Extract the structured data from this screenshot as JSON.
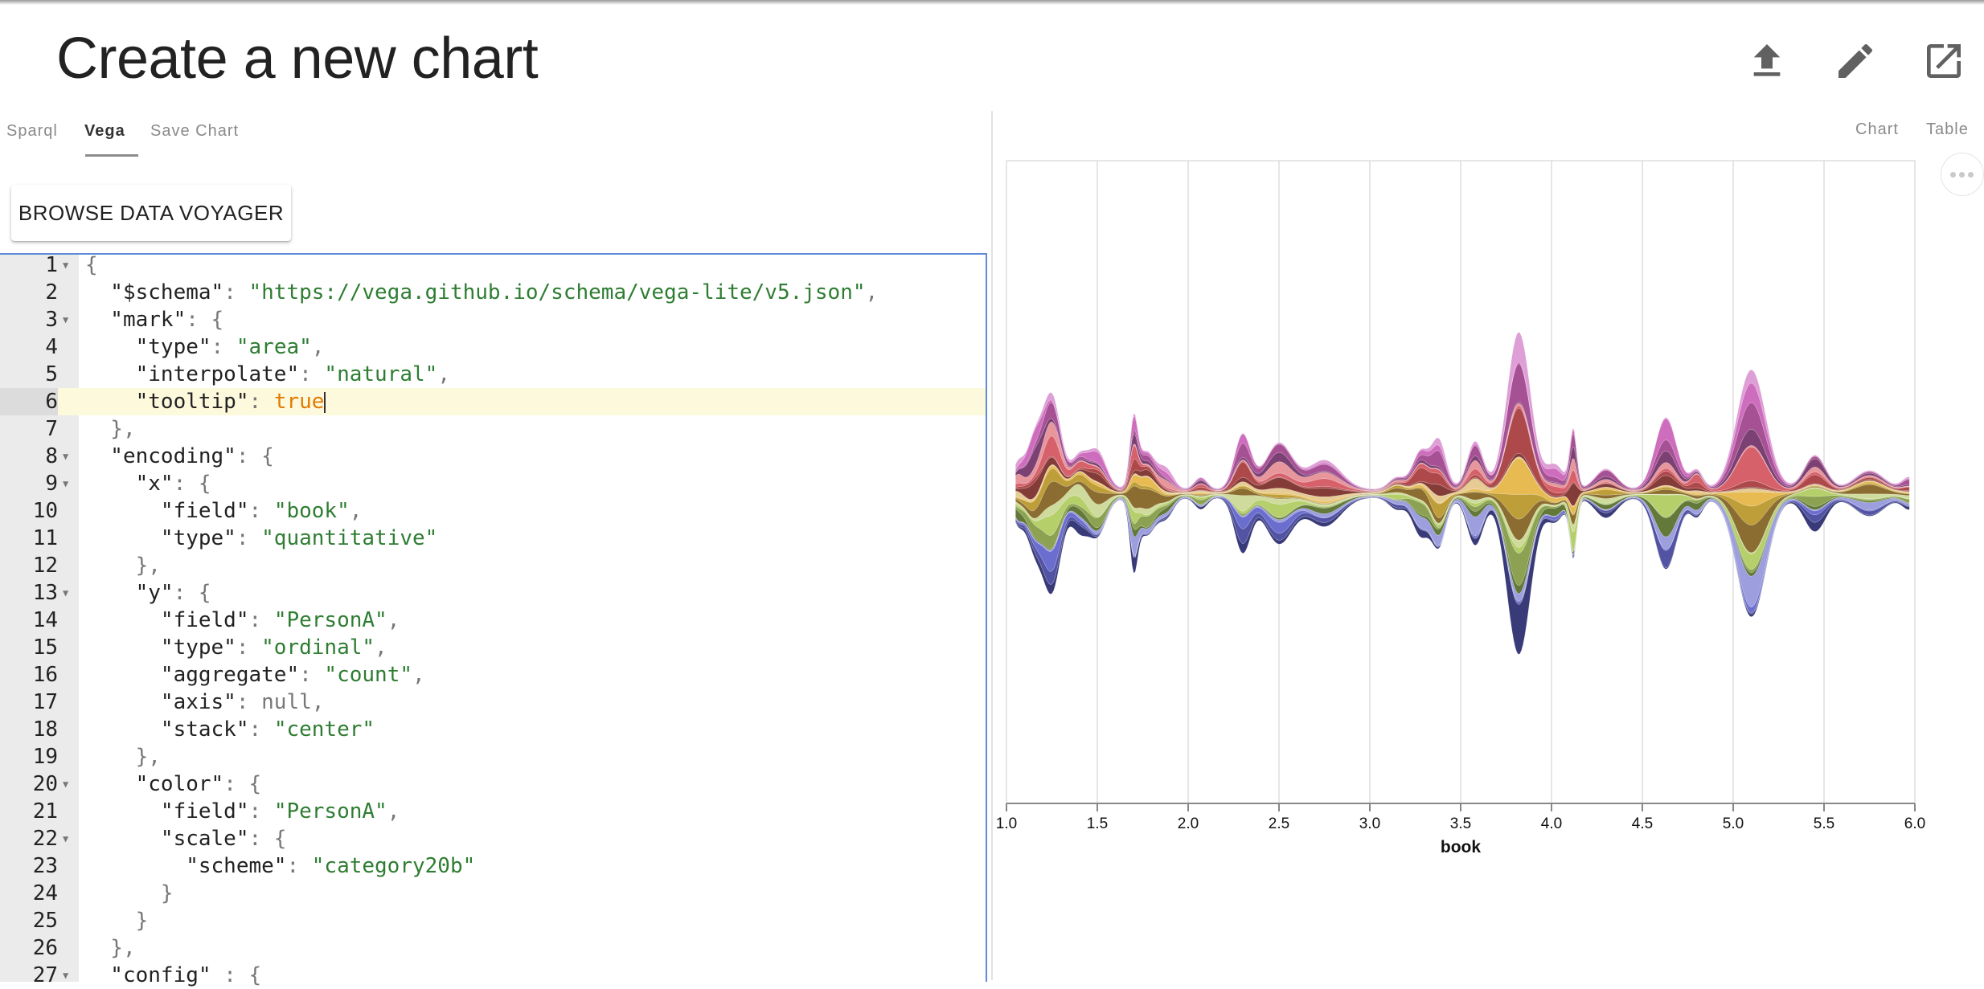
{
  "header": {
    "title": "Create a new chart"
  },
  "tabs": [
    {
      "label": "Sparql",
      "active": false
    },
    {
      "label": "Vega",
      "active": true
    },
    {
      "label": "Save Chart",
      "active": false
    }
  ],
  "toolbar": {
    "browse_label": "BROWSE DATA VOYAGER",
    "icons": [
      "upload-icon",
      "edit-icon",
      "open-in-new-icon"
    ]
  },
  "right_tabs": [
    {
      "label": "Chart"
    },
    {
      "label": "Table"
    }
  ],
  "editor": {
    "active_line": 6,
    "lines": [
      {
        "n": "1",
        "fold": true,
        "tokens": [
          [
            "p",
            "{"
          ]
        ]
      },
      {
        "n": "2",
        "fold": false,
        "tokens": [
          [
            "k",
            "  \"$schema\""
          ],
          [
            "p",
            ": "
          ],
          [
            "s",
            "\"https://vega.github.io/schema/vega-lite/v5.json\""
          ],
          [
            "p",
            ","
          ]
        ]
      },
      {
        "n": "3",
        "fold": true,
        "tokens": [
          [
            "k",
            "  \"mark\""
          ],
          [
            "p",
            ": {"
          ]
        ]
      },
      {
        "n": "4",
        "fold": false,
        "tokens": [
          [
            "k",
            "    \"type\""
          ],
          [
            "p",
            ": "
          ],
          [
            "s",
            "\"area\""
          ],
          [
            "p",
            ","
          ]
        ]
      },
      {
        "n": "5",
        "fold": false,
        "tokens": [
          [
            "k",
            "    \"interpolate\""
          ],
          [
            "p",
            ": "
          ],
          [
            "s",
            "\"natural\""
          ],
          [
            "p",
            ","
          ]
        ]
      },
      {
        "n": "6",
        "fold": false,
        "tokens": [
          [
            "k",
            "    \"tooltip\""
          ],
          [
            "p",
            ": "
          ],
          [
            "b",
            "true"
          ]
        ]
      },
      {
        "n": "7",
        "fold": false,
        "tokens": [
          [
            "p",
            "  },"
          ]
        ]
      },
      {
        "n": "8",
        "fold": true,
        "tokens": [
          [
            "k",
            "  \"encoding\""
          ],
          [
            "p",
            ": {"
          ]
        ]
      },
      {
        "n": "9",
        "fold": true,
        "tokens": [
          [
            "k",
            "    \"x\""
          ],
          [
            "p",
            ": {"
          ]
        ]
      },
      {
        "n": "10",
        "fold": false,
        "tokens": [
          [
            "k",
            "      \"field\""
          ],
          [
            "p",
            ": "
          ],
          [
            "s",
            "\"book\""
          ],
          [
            "p",
            ","
          ]
        ]
      },
      {
        "n": "11",
        "fold": false,
        "tokens": [
          [
            "k",
            "      \"type\""
          ],
          [
            "p",
            ": "
          ],
          [
            "s",
            "\"quantitative\""
          ]
        ]
      },
      {
        "n": "12",
        "fold": false,
        "tokens": [
          [
            "p",
            "    },"
          ]
        ]
      },
      {
        "n": "13",
        "fold": true,
        "tokens": [
          [
            "k",
            "    \"y\""
          ],
          [
            "p",
            ": {"
          ]
        ]
      },
      {
        "n": "14",
        "fold": false,
        "tokens": [
          [
            "k",
            "      \"field\""
          ],
          [
            "p",
            ": "
          ],
          [
            "s",
            "\"PersonA\""
          ],
          [
            "p",
            ","
          ]
        ]
      },
      {
        "n": "15",
        "fold": false,
        "tokens": [
          [
            "k",
            "      \"type\""
          ],
          [
            "p",
            ": "
          ],
          [
            "s",
            "\"ordinal\""
          ],
          [
            "p",
            ","
          ]
        ]
      },
      {
        "n": "16",
        "fold": false,
        "tokens": [
          [
            "k",
            "      \"aggregate\""
          ],
          [
            "p",
            ": "
          ],
          [
            "s",
            "\"count\""
          ],
          [
            "p",
            ","
          ]
        ]
      },
      {
        "n": "17",
        "fold": false,
        "tokens": [
          [
            "k",
            "      \"axis\""
          ],
          [
            "p",
            ": "
          ],
          [
            "n",
            "null"
          ],
          [
            "p",
            ","
          ]
        ]
      },
      {
        "n": "18",
        "fold": false,
        "tokens": [
          [
            "k",
            "      \"stack\""
          ],
          [
            "p",
            ": "
          ],
          [
            "s",
            "\"center\""
          ]
        ]
      },
      {
        "n": "19",
        "fold": false,
        "tokens": [
          [
            "p",
            "    },"
          ]
        ]
      },
      {
        "n": "20",
        "fold": true,
        "tokens": [
          [
            "k",
            "    \"color\""
          ],
          [
            "p",
            ": {"
          ]
        ]
      },
      {
        "n": "21",
        "fold": false,
        "tokens": [
          [
            "k",
            "      \"field\""
          ],
          [
            "p",
            ": "
          ],
          [
            "s",
            "\"PersonA\""
          ],
          [
            "p",
            ","
          ]
        ]
      },
      {
        "n": "22",
        "fold": true,
        "tokens": [
          [
            "k",
            "      \"scale\""
          ],
          [
            "p",
            ": {"
          ]
        ]
      },
      {
        "n": "23",
        "fold": false,
        "tokens": [
          [
            "k",
            "        \"scheme\""
          ],
          [
            "p",
            ": "
          ],
          [
            "s",
            "\"category20b\""
          ]
        ]
      },
      {
        "n": "24",
        "fold": false,
        "tokens": [
          [
            "p",
            "      }"
          ]
        ]
      },
      {
        "n": "25",
        "fold": false,
        "tokens": [
          [
            "p",
            "    }"
          ]
        ]
      },
      {
        "n": "26",
        "fold": false,
        "tokens": [
          [
            "p",
            "  },"
          ]
        ]
      },
      {
        "n": "27",
        "fold": true,
        "tokens": [
          [
            "k",
            "  \"config\""
          ],
          [
            "p",
            " : {"
          ]
        ]
      }
    ]
  },
  "chart_data": {
    "type": "area",
    "stack": "center",
    "interpolate": "natural",
    "title": "",
    "xlabel": "book",
    "ylabel": "",
    "xlim": [
      1.0,
      6.0
    ],
    "xticks": [
      "1.0",
      "1.5",
      "2.0",
      "2.5",
      "3.0",
      "3.5",
      "4.0",
      "4.5",
      "5.0",
      "5.5",
      "6.0"
    ],
    "grid": true,
    "y_axis": "none",
    "colors": [
      "#393b79",
      "#5254a3",
      "#6b6ecf",
      "#9c9ede",
      "#637939",
      "#8ca252",
      "#b5cf6b",
      "#cedb9c",
      "#8c6d31",
      "#bd9e39",
      "#e7ba52",
      "#e7cb94",
      "#843c39",
      "#ad494a",
      "#d6616b",
      "#e7969c",
      "#7b4173",
      "#a55194",
      "#ce6dbd",
      "#de9ed6"
    ],
    "peaks": [
      {
        "x": 1.06,
        "w": 0.03,
        "h": 0.65
      },
      {
        "x": 1.15,
        "w": 0.045,
        "h": 1.35
      },
      {
        "x": 1.25,
        "w": 0.05,
        "h": 2.7
      },
      {
        "x": 1.4,
        "w": 0.045,
        "h": 0.9
      },
      {
        "x": 1.5,
        "w": 0.05,
        "h": 1.1
      },
      {
        "x": 1.7,
        "w": 0.022,
        "h": 1.8
      },
      {
        "x": 1.77,
        "w": 0.05,
        "h": 1.1
      },
      {
        "x": 1.88,
        "w": 0.04,
        "h": 0.55
      },
      {
        "x": 2.07,
        "w": 0.035,
        "h": 0.35
      },
      {
        "x": 2.3,
        "w": 0.045,
        "h": 1.6
      },
      {
        "x": 2.5,
        "w": 0.075,
        "h": 1.35
      },
      {
        "x": 2.75,
        "w": 0.09,
        "h": 0.85
      },
      {
        "x": 3.15,
        "w": 0.045,
        "h": 0.35
      },
      {
        "x": 3.28,
        "w": 0.045,
        "h": 1.1
      },
      {
        "x": 3.38,
        "w": 0.04,
        "h": 1.4
      },
      {
        "x": 3.58,
        "w": 0.045,
        "h": 1.4
      },
      {
        "x": 3.82,
        "w": 0.065,
        "h": 4.6
      },
      {
        "x": 4.02,
        "w": 0.05,
        "h": 0.7
      },
      {
        "x": 4.12,
        "w": 0.02,
        "h": 1.7
      },
      {
        "x": 4.3,
        "w": 0.06,
        "h": 0.6
      },
      {
        "x": 4.63,
        "w": 0.06,
        "h": 2.1
      },
      {
        "x": 4.8,
        "w": 0.035,
        "h": 0.55
      },
      {
        "x": 5.1,
        "w": 0.08,
        "h": 3.5
      },
      {
        "x": 5.45,
        "w": 0.06,
        "h": 1.0
      },
      {
        "x": 5.75,
        "w": 0.08,
        "h": 0.55
      },
      {
        "x": 5.97,
        "w": 0.04,
        "h": 0.35
      }
    ]
  }
}
